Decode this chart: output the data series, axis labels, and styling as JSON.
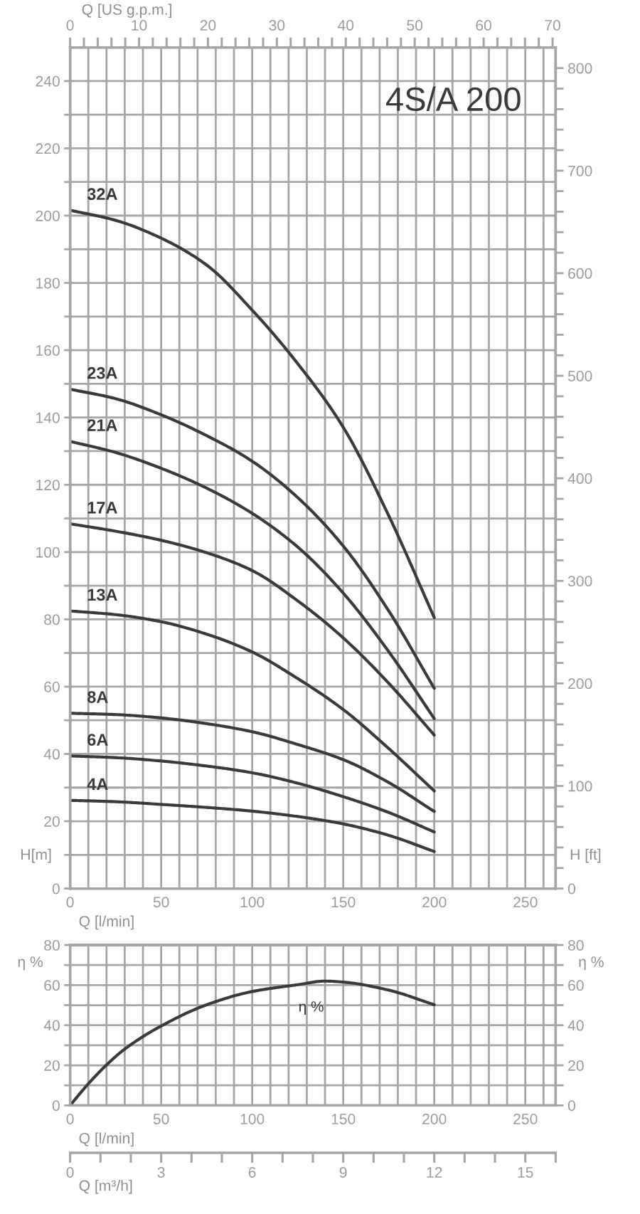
{
  "chart_data": [
    {
      "type": "line",
      "title": "4S/A 200",
      "xlabel": "Q [l/min]",
      "ylabel": "H[m]",
      "x2label": "Q [US g.p.m.]",
      "y2label": "H [ft]",
      "x": [
        0,
        25,
        50,
        75,
        100,
        125,
        150,
        175,
        200
      ],
      "series": [
        {
          "name": "32A",
          "color": "#3a3a3a",
          "values": [
            201.6,
            198.6,
            193.3,
            185.3,
            171.9,
            156.0,
            137.1,
            110.8,
            80.5
          ]
        },
        {
          "name": "23A",
          "color": "#3a3a3a",
          "values": [
            148.4,
            145.6,
            140.8,
            134.6,
            127.0,
            116.2,
            101.8,
            82.5,
            59.5
          ]
        },
        {
          "name": "21A",
          "color": "#3a3a3a",
          "values": [
            132.9,
            129.6,
            124.9,
            119.0,
            111.5,
            101.5,
            87.8,
            70.4,
            50.5
          ]
        },
        {
          "name": "17A",
          "color": "#3a3a3a",
          "values": [
            108.4,
            106.2,
            103.5,
            99.8,
            94.5,
            85.5,
            74.5,
            61.0,
            45.6
          ]
        },
        {
          "name": "13A",
          "color": "#3a3a3a",
          "values": [
            82.5,
            81.4,
            79.3,
            75.6,
            70.3,
            62.4,
            53.2,
            41.6,
            29.0
          ]
        },
        {
          "name": "8A",
          "color": "#3a3a3a",
          "values": [
            52.1,
            51.7,
            50.7,
            49.0,
            46.6,
            42.8,
            38.3,
            31.5,
            22.9
          ]
        },
        {
          "name": "6A",
          "color": "#3a3a3a",
          "values": [
            39.4,
            38.9,
            37.9,
            36.4,
            34.4,
            31.3,
            27.3,
            22.6,
            16.8
          ]
        },
        {
          "name": "4A",
          "color": "#3a3a3a",
          "values": [
            26.2,
            25.8,
            25.0,
            24.1,
            23.0,
            21.4,
            19.2,
            15.8,
            11.0
          ]
        }
      ],
      "xlim": [
        0,
        266.67
      ],
      "xticks": [
        0,
        {
          "value": 10,
          "label": null
        },
        {
          "value": 20,
          "label": null
        },
        {
          "value": 30,
          "label": null
        },
        {
          "value": 40,
          "label": null
        },
        50,
        {
          "value": 60,
          "label": null
        },
        {
          "value": 70,
          "label": null
        },
        {
          "value": 80,
          "label": null
        },
        {
          "value": 90,
          "label": null
        },
        100,
        {
          "value": 110,
          "label": null
        },
        {
          "value": 120,
          "label": null
        },
        {
          "value": 130,
          "label": null
        },
        {
          "value": 140,
          "label": null
        },
        150,
        {
          "value": 160,
          "label": null
        },
        {
          "value": 170,
          "label": null
        },
        {
          "value": 180,
          "label": null
        },
        {
          "value": 190,
          "label": null
        },
        200,
        {
          "value": 210,
          "label": null
        },
        {
          "value": 220,
          "label": null
        },
        {
          "value": 230,
          "label": null
        },
        {
          "value": 240,
          "label": null
        },
        250,
        {
          "value": 260,
          "label": null
        }
      ],
      "ylim": [
        0,
        250
      ],
      "yticks": [
        0,
        {
          "value": 10,
          "label": null
        },
        20,
        {
          "value": 30,
          "label": null
        },
        40,
        {
          "value": 50,
          "label": null
        },
        60,
        {
          "value": 70,
          "label": null
        },
        80,
        {
          "value": 90,
          "label": null
        },
        100,
        {
          "value": 110,
          "label": null
        },
        120,
        {
          "value": 130,
          "label": null
        },
        140,
        {
          "value": 150,
          "label": null
        },
        160,
        {
          "value": 170,
          "label": null
        },
        180,
        {
          "value": 190,
          "label": null
        },
        200,
        {
          "value": 210,
          "label": null
        },
        220,
        {
          "value": 230,
          "label": null
        },
        240
      ],
      "x2lim": [
        0,
        70.45
      ],
      "x2ticks": [
        0,
        {
          "value": 2,
          "label": null
        },
        {
          "value": 4,
          "label": null
        },
        {
          "value": 6,
          "label": null
        },
        {
          "value": 8,
          "label": null
        },
        10,
        {
          "value": 12,
          "label": null
        },
        {
          "value": 14,
          "label": null
        },
        {
          "value": 16,
          "label": null
        },
        {
          "value": 18,
          "label": null
        },
        20,
        {
          "value": 22,
          "label": null
        },
        {
          "value": 24,
          "label": null
        },
        {
          "value": 26,
          "label": null
        },
        {
          "value": 28,
          "label": null
        },
        30,
        {
          "value": 32,
          "label": null
        },
        {
          "value": 34,
          "label": null
        },
        {
          "value": 36,
          "label": null
        },
        {
          "value": 38,
          "label": null
        },
        40,
        {
          "value": 42,
          "label": null
        },
        {
          "value": 44,
          "label": null
        },
        {
          "value": 46,
          "label": null
        },
        {
          "value": 48,
          "label": null
        },
        50,
        {
          "value": 52,
          "label": null
        },
        {
          "value": 54,
          "label": null
        },
        {
          "value": 56,
          "label": null
        },
        {
          "value": 58,
          "label": null
        },
        60,
        {
          "value": 62,
          "label": null
        },
        {
          "value": 64,
          "label": null
        },
        {
          "value": 66,
          "label": null
        },
        {
          "value": 68,
          "label": null
        },
        70
      ],
      "y2lim": [
        0,
        820.2
      ],
      "y2ticks": [
        0,
        {
          "value": 20,
          "label": null
        },
        {
          "value": 40,
          "label": null
        },
        {
          "value": 60,
          "label": null
        },
        {
          "value": 80,
          "label": null
        },
        100,
        {
          "value": 120,
          "label": null
        },
        {
          "value": 140,
          "label": null
        },
        {
          "value": 160,
          "label": null
        },
        {
          "value": 180,
          "label": null
        },
        200,
        {
          "value": 220,
          "label": null
        },
        {
          "value": 240,
          "label": null
        },
        {
          "value": 260,
          "label": null
        },
        {
          "value": 280,
          "label": null
        },
        300,
        {
          "value": 320,
          "label": null
        },
        {
          "value": 340,
          "label": null
        },
        {
          "value": 360,
          "label": null
        },
        {
          "value": 380,
          "label": null
        },
        400,
        {
          "value": 420,
          "label": null
        },
        {
          "value": 440,
          "label": null
        },
        {
          "value": 460,
          "label": null
        },
        {
          "value": 480,
          "label": null
        },
        500,
        {
          "value": 520,
          "label": null
        },
        {
          "value": 540,
          "label": null
        },
        {
          "value": 560,
          "label": null
        },
        {
          "value": 580,
          "label": null
        },
        600,
        {
          "value": 620,
          "label": null
        },
        {
          "value": 640,
          "label": null
        },
        {
          "value": 660,
          "label": null
        },
        {
          "value": 680,
          "label": null
        },
        700,
        {
          "value": 720,
          "label": null
        },
        {
          "value": 740,
          "label": null
        },
        {
          "value": 760,
          "label": null
        },
        {
          "value": 780,
          "label": null
        },
        800
      ],
      "grid": true
    },
    {
      "type": "line",
      "xlabel": "Q [l/min]",
      "ylabel": "η %",
      "x2label": "Q [m³/h]",
      "y2label": "η %",
      "series": [
        {
          "name": "η %",
          "color": "#3a3a3a",
          "x": [
            0,
            10,
            20,
            30,
            50,
            75,
            100,
            125,
            140,
            150,
            175,
            200
          ],
          "values": [
            0,
            10.8,
            20.2,
            28.1,
            39.6,
            50.2,
            56.8,
            60.2,
            62,
            61.5,
            57.5,
            50.2
          ]
        }
      ],
      "xlim": [
        0,
        266.67
      ],
      "xticks": [
        0,
        {
          "value": 10,
          "label": null
        },
        {
          "value": 20,
          "label": null
        },
        {
          "value": 30,
          "label": null
        },
        {
          "value": 40,
          "label": null
        },
        50,
        {
          "value": 60,
          "label": null
        },
        {
          "value": 70,
          "label": null
        },
        {
          "value": 80,
          "label": null
        },
        {
          "value": 90,
          "label": null
        },
        100,
        {
          "value": 110,
          "label": null
        },
        {
          "value": 120,
          "label": null
        },
        {
          "value": 130,
          "label": null
        },
        {
          "value": 140,
          "label": null
        },
        150,
        {
          "value": 160,
          "label": null
        },
        {
          "value": 170,
          "label": null
        },
        {
          "value": 180,
          "label": null
        },
        {
          "value": 190,
          "label": null
        },
        200,
        {
          "value": 210,
          "label": null
        },
        {
          "value": 220,
          "label": null
        },
        {
          "value": 230,
          "label": null
        },
        {
          "value": 240,
          "label": null
        },
        250,
        {
          "value": 260,
          "label": null
        }
      ],
      "ylim": [
        0,
        80
      ],
      "yticks": [
        0,
        {
          "value": 10,
          "label": null
        },
        20,
        {
          "value": 30,
          "label": null
        },
        40,
        {
          "value": 50,
          "label": null
        },
        60,
        {
          "value": 70,
          "label": null
        },
        80
      ],
      "x2lim": [
        0,
        16
      ],
      "x2ticks": [
        0,
        3,
        6,
        9,
        12,
        15
      ],
      "y2lim": [
        0,
        80
      ],
      "y2ticks": [
        0,
        {
          "value": 10,
          "label": null
        },
        20,
        {
          "value": 30,
          "label": null
        },
        40,
        {
          "value": 50,
          "label": null
        },
        60,
        {
          "value": 70,
          "label": null
        },
        80
      ],
      "grid": true
    }
  ]
}
